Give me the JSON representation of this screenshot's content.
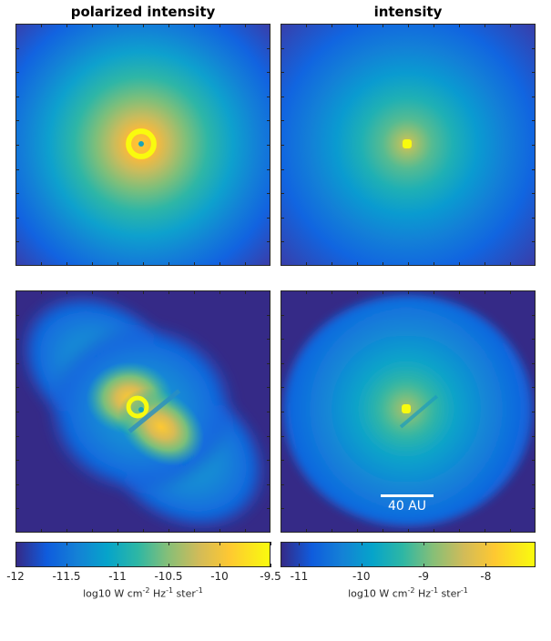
{
  "columns": {
    "left_title": "polarized intensity",
    "right_title": "intensity"
  },
  "colorbars": {
    "left": {
      "ticks": [
        "-12",
        "-11.5",
        "-11",
        "-10.5",
        "-10",
        "-9.5"
      ],
      "range": [
        -12,
        -9.5
      ],
      "label_prefix": "log10 W cm",
      "label_exp1": "-2",
      "label_mid1": " Hz",
      "label_exp2": "-1",
      "label_mid2": " ster",
      "label_exp3": "-1"
    },
    "right": {
      "ticks": [
        "-11",
        "-10",
        "-9",
        "-8"
      ],
      "range": [
        -11.3,
        -7.2
      ],
      "label_prefix": "log10 W cm",
      "label_exp1": "-2",
      "label_mid1": " Hz",
      "label_exp2": "-1",
      "label_mid2": " ster",
      "label_exp3": "-1"
    }
  },
  "scalebar": {
    "label": "40 AU"
  },
  "colormap": "parula",
  "chart_data": [
    {
      "type": "heatmap",
      "title": "polarized intensity",
      "row": "top",
      "morphology": "spherical envelope",
      "colorbar_range": [
        -12,
        -9.5
      ],
      "colorbar_label": "log10 W cm-2 Hz-1 ster-1"
    },
    {
      "type": "heatmap",
      "title": "intensity",
      "row": "top",
      "morphology": "spherical envelope",
      "colorbar_range": [
        -11.3,
        -7.2
      ],
      "colorbar_label": "log10 W cm-2 Hz-1 ster-1"
    },
    {
      "type": "heatmap",
      "row": "bottom",
      "column": "polarized intensity",
      "morphology": "bipolar outflow cavities with dark disk lane",
      "colorbar_range": [
        -12,
        -9.5
      ],
      "colorbar_label": "log10 W cm-2 Hz-1 ster-1"
    },
    {
      "type": "heatmap",
      "row": "bottom",
      "column": "intensity",
      "morphology": "envelope with disk lane",
      "colorbar_range": [
        -11.3,
        -7.2
      ],
      "colorbar_label": "log10 W cm-2 Hz-1 ster-1",
      "scalebar": "40 AU"
    }
  ]
}
